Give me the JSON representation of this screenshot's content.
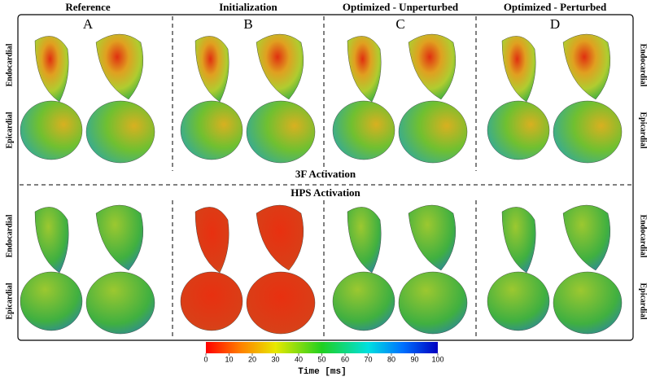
{
  "columns": [
    {
      "title": "Reference",
      "letter": "A"
    },
    {
      "title": "Initialization",
      "letter": "B"
    },
    {
      "title": "Optimized - Unperturbed",
      "letter": "C"
    },
    {
      "title": "Optimized - Perturbed",
      "letter": "D"
    }
  ],
  "row_labels": {
    "left": [
      "Endocardial",
      "Epicardial",
      "Endocardial",
      "Epicardial"
    ],
    "right": [
      "Endocardial",
      "Epicardial",
      "Endocardial",
      "Epicardial"
    ]
  },
  "sections": [
    "3F Activation",
    "HPS Activation"
  ],
  "colorbar": {
    "label": "Time [ms]",
    "range": [
      0,
      100
    ],
    "ticks": [
      0,
      10,
      20,
      30,
      40,
      50,
      60,
      70,
      80,
      90,
      100
    ]
  }
}
